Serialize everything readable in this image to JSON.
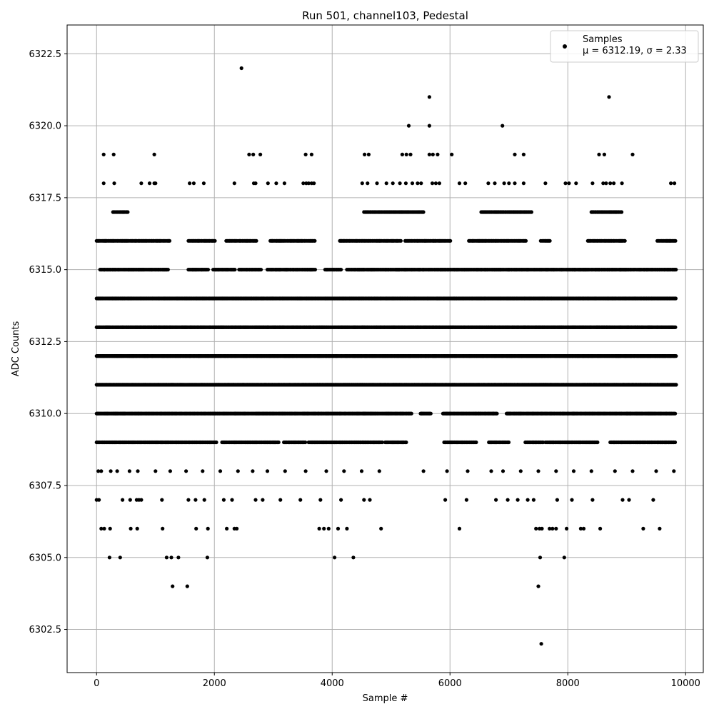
{
  "chart_data": {
    "type": "scatter",
    "title": "Run 501, channel103, Pedestal",
    "xlabel": "Sample #",
    "ylabel": "ADC Counts",
    "xlim": [
      -500,
      10300
    ],
    "ylim": [
      6301,
      6323.5
    ],
    "xticks": [
      0,
      2000,
      4000,
      6000,
      8000,
      10000
    ],
    "xtick_labels": [
      "0",
      "2000",
      "4000",
      "6000",
      "8000",
      "10000"
    ],
    "yticks": [
      6302.5,
      6305.0,
      6307.5,
      6310.0,
      6312.5,
      6315.0,
      6317.5,
      6320.0,
      6322.5
    ],
    "ytick_labels": [
      "6302.5",
      "6305.0",
      "6307.5",
      "6310.0",
      "6312.5",
      "6315.0",
      "6317.5",
      "6320.0",
      "6322.5"
    ],
    "grid": true,
    "legend_position": "top-right",
    "series": [
      {
        "name": "Samples",
        "label_line2": "μ = 6312.19, σ = 2.33",
        "color": "#000000",
        "n_samples": 9850,
        "level_bands": [
          {
            "y": 6309,
            "runs": [
              [
                0,
                1140
              ],
              [
                1160,
                2040
              ],
              [
                2130,
                3100
              ],
              [
                3180,
                3560
              ],
              [
                3600,
                4850
              ],
              [
                4900,
                5260
              ],
              [
                5900,
                6460
              ],
              [
                6660,
                7000
              ],
              [
                7280,
                7580
              ],
              [
                7620,
                8520
              ],
              [
                8720,
                9830
              ]
            ]
          },
          {
            "y": 6310,
            "runs": [
              [
                0,
                5350
              ],
              [
                5500,
                5680
              ],
              [
                5880,
                6800
              ],
              [
                6960,
                9830
              ]
            ]
          },
          {
            "y": 6311,
            "runs": [
              [
                0,
                9840
              ]
            ]
          },
          {
            "y": 6312,
            "runs": [
              [
                0,
                9840
              ]
            ]
          },
          {
            "y": 6313,
            "runs": [
              [
                0,
                9840
              ]
            ]
          },
          {
            "y": 6314,
            "runs": [
              [
                0,
                9840
              ]
            ]
          },
          {
            "y": 6315,
            "runs": [
              [
                60,
                1230
              ],
              [
                1560,
                1900
              ],
              [
                1980,
                2350
              ],
              [
                2420,
                2810
              ],
              [
                2900,
                3720
              ],
              [
                3880,
                4160
              ],
              [
                4250,
                9840
              ]
            ]
          },
          {
            "y": 6316,
            "runs": [
              [
                0,
                1240
              ],
              [
                1560,
                2010
              ],
              [
                2200,
                2720
              ],
              [
                2950,
                3720
              ],
              [
                4130,
                5180
              ],
              [
                5240,
                6020
              ],
              [
                6320,
                7300
              ],
              [
                7540,
                7700
              ],
              [
                8340,
                8980
              ],
              [
                9520,
                9830
              ]
            ]
          },
          {
            "y": 6317,
            "runs": [
              [
                280,
                530
              ],
              [
                4540,
                5560
              ],
              [
                6530,
                7400
              ],
              [
                8400,
                8920
              ]
            ]
          }
        ],
        "sparse_points": [
          [
            0,
            6307
          ],
          [
            40,
            6307
          ],
          [
            80,
            6306
          ],
          [
            130,
            6306
          ],
          [
            220,
            6305
          ],
          [
            230,
            6306
          ],
          [
            400,
            6305
          ],
          [
            440,
            6307
          ],
          [
            570,
            6307
          ],
          [
            580,
            6306
          ],
          [
            680,
            6307
          ],
          [
            690,
            6306
          ],
          [
            720,
            6307
          ],
          [
            760,
            6307
          ],
          [
            1110,
            6307
          ],
          [
            1120,
            6306
          ],
          [
            1190,
            6305
          ],
          [
            1270,
            6305
          ],
          [
            1290,
            6304
          ],
          [
            1390,
            6305
          ],
          [
            1540,
            6304
          ],
          [
            1560,
            6307
          ],
          [
            1680,
            6307
          ],
          [
            1690,
            6306
          ],
          [
            1830,
            6307
          ],
          [
            1880,
            6305
          ],
          [
            1890,
            6306
          ],
          [
            2160,
            6307
          ],
          [
            2210,
            6306
          ],
          [
            2300,
            6307
          ],
          [
            2340,
            6306
          ],
          [
            2380,
            6306
          ],
          [
            2700,
            6307
          ],
          [
            2820,
            6307
          ],
          [
            3120,
            6307
          ],
          [
            3460,
            6307
          ],
          [
            3780,
            6306
          ],
          [
            3800,
            6307
          ],
          [
            3860,
            6306
          ],
          [
            3940,
            6306
          ],
          [
            4040,
            6305
          ],
          [
            4100,
            6306
          ],
          [
            4150,
            6307
          ],
          [
            4250,
            6306
          ],
          [
            4360,
            6305
          ],
          [
            4540,
            6307
          ],
          [
            4640,
            6307
          ],
          [
            4830,
            6306
          ],
          [
            5920,
            6307
          ],
          [
            6160,
            6306
          ],
          [
            6280,
            6307
          ],
          [
            6780,
            6307
          ],
          [
            6980,
            6307
          ],
          [
            7150,
            6307
          ],
          [
            7320,
            6307
          ],
          [
            7420,
            6307
          ],
          [
            7460,
            6306
          ],
          [
            7500,
            6304
          ],
          [
            7520,
            6306
          ],
          [
            7530,
            6305
          ],
          [
            7550,
            6302
          ],
          [
            7560,
            6306
          ],
          [
            7690,
            6306
          ],
          [
            7740,
            6306
          ],
          [
            7800,
            6306
          ],
          [
            7820,
            6307
          ],
          [
            7940,
            6305
          ],
          [
            7980,
            6306
          ],
          [
            8070,
            6307
          ],
          [
            8220,
            6306
          ],
          [
            8270,
            6306
          ],
          [
            8420,
            6307
          ],
          [
            8550,
            6306
          ],
          [
            8930,
            6307
          ],
          [
            9040,
            6307
          ],
          [
            9280,
            6306
          ],
          [
            9450,
            6307
          ],
          [
            9560,
            6306
          ],
          [
            30,
            6308
          ],
          [
            80,
            6308
          ],
          [
            240,
            6308
          ],
          [
            350,
            6308
          ],
          [
            560,
            6308
          ],
          [
            700,
            6308
          ],
          [
            1000,
            6308
          ],
          [
            1250,
            6308
          ],
          [
            1520,
            6308
          ],
          [
            1800,
            6308
          ],
          [
            2100,
            6308
          ],
          [
            2400,
            6308
          ],
          [
            2650,
            6308
          ],
          [
            2900,
            6308
          ],
          [
            3200,
            6308
          ],
          [
            3550,
            6308
          ],
          [
            3900,
            6308
          ],
          [
            4200,
            6308
          ],
          [
            4500,
            6308
          ],
          [
            4800,
            6308
          ],
          [
            5550,
            6308
          ],
          [
            5950,
            6308
          ],
          [
            6300,
            6308
          ],
          [
            6700,
            6308
          ],
          [
            6900,
            6308
          ],
          [
            7200,
            6308
          ],
          [
            7500,
            6308
          ],
          [
            7800,
            6308
          ],
          [
            8100,
            6308
          ],
          [
            8400,
            6308
          ],
          [
            8800,
            6308
          ],
          [
            9100,
            6308
          ],
          [
            9500,
            6308
          ],
          [
            9800,
            6308
          ],
          [
            120,
            6318
          ],
          [
            300,
            6318
          ],
          [
            760,
            6318
          ],
          [
            900,
            6318
          ],
          [
            980,
            6318
          ],
          [
            1000,
            6318
          ],
          [
            1580,
            6318
          ],
          [
            1650,
            6318
          ],
          [
            1820,
            6318
          ],
          [
            2340,
            6318
          ],
          [
            2670,
            6318
          ],
          [
            2700,
            6318
          ],
          [
            2910,
            6318
          ],
          [
            3050,
            6318
          ],
          [
            3190,
            6318
          ],
          [
            3510,
            6318
          ],
          [
            3560,
            6318
          ],
          [
            3600,
            6318
          ],
          [
            3650,
            6318
          ],
          [
            3690,
            6318
          ],
          [
            4510,
            6318
          ],
          [
            4600,
            6318
          ],
          [
            4760,
            6318
          ],
          [
            4920,
            6318
          ],
          [
            5030,
            6318
          ],
          [
            5150,
            6318
          ],
          [
            5250,
            6318
          ],
          [
            5360,
            6318
          ],
          [
            5450,
            6318
          ],
          [
            5510,
            6318
          ],
          [
            5700,
            6318
          ],
          [
            5760,
            6318
          ],
          [
            5820,
            6318
          ],
          [
            6160,
            6318
          ],
          [
            6260,
            6318
          ],
          [
            6650,
            6318
          ],
          [
            6760,
            6318
          ],
          [
            6920,
            6318
          ],
          [
            7000,
            6318
          ],
          [
            7100,
            6318
          ],
          [
            7250,
            6318
          ],
          [
            7620,
            6318
          ],
          [
            7960,
            6318
          ],
          [
            8020,
            6318
          ],
          [
            8140,
            6318
          ],
          [
            8420,
            6318
          ],
          [
            8600,
            6318
          ],
          [
            8650,
            6318
          ],
          [
            8720,
            6318
          ],
          [
            8780,
            6318
          ],
          [
            8920,
            6318
          ],
          [
            9750,
            6318
          ],
          [
            9810,
            6318
          ],
          [
            120,
            6319
          ],
          [
            290,
            6319
          ],
          [
            980,
            6319
          ],
          [
            2590,
            6319
          ],
          [
            2660,
            6319
          ],
          [
            2780,
            6319
          ],
          [
            3550,
            6319
          ],
          [
            3650,
            6319
          ],
          [
            4550,
            6319
          ],
          [
            4620,
            6319
          ],
          [
            5190,
            6319
          ],
          [
            5260,
            6319
          ],
          [
            5330,
            6319
          ],
          [
            5650,
            6319
          ],
          [
            5710,
            6319
          ],
          [
            5790,
            6319
          ],
          [
            6030,
            6319
          ],
          [
            7100,
            6319
          ],
          [
            7250,
            6319
          ],
          [
            8530,
            6319
          ],
          [
            8620,
            6319
          ],
          [
            9100,
            6319
          ],
          [
            5300,
            6320
          ],
          [
            5650,
            6320
          ],
          [
            6890,
            6320
          ],
          [
            5650,
            6321
          ],
          [
            8700,
            6321
          ],
          [
            2460,
            6322
          ]
        ]
      }
    ]
  }
}
